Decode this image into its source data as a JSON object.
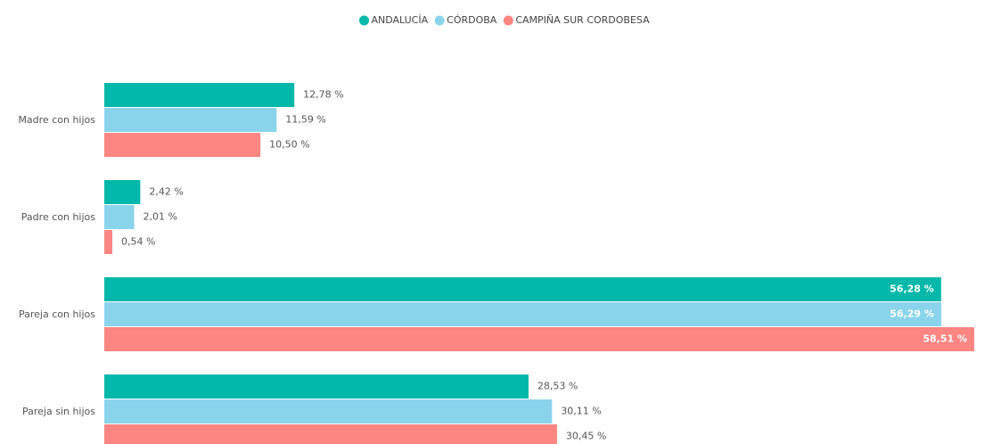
{
  "chart_data": {
    "type": "bar",
    "orientation": "horizontal",
    "categories": [
      "Madre con hijos",
      "Padre con hijos",
      "Pareja con hijos",
      "Pareja sin hijos"
    ],
    "series": [
      {
        "name": "ANDALUCÍA",
        "color": "#01B8AA",
        "values": [
          12.78,
          2.42,
          56.28,
          28.53
        ],
        "value_labels": [
          "12,78 %",
          "2,42 %",
          "56,28 %",
          "28,53 %"
        ]
      },
      {
        "name": "CÓRDOBA",
        "color": "#8AD4EB",
        "values": [
          11.59,
          2.01,
          56.29,
          30.11
        ],
        "value_labels": [
          "11,59 %",
          "2,01 %",
          "56,29 %",
          "30,11 %"
        ]
      },
      {
        "name": "CAMPIÑA SUR CORDOBESA",
        "color": "#FD8582",
        "values": [
          10.5,
          0.54,
          58.51,
          30.45
        ],
        "value_labels": [
          "10,50 %",
          "0,54 %",
          "58,51 %",
          "30,45 %"
        ]
      }
    ],
    "legend": "top"
  }
}
